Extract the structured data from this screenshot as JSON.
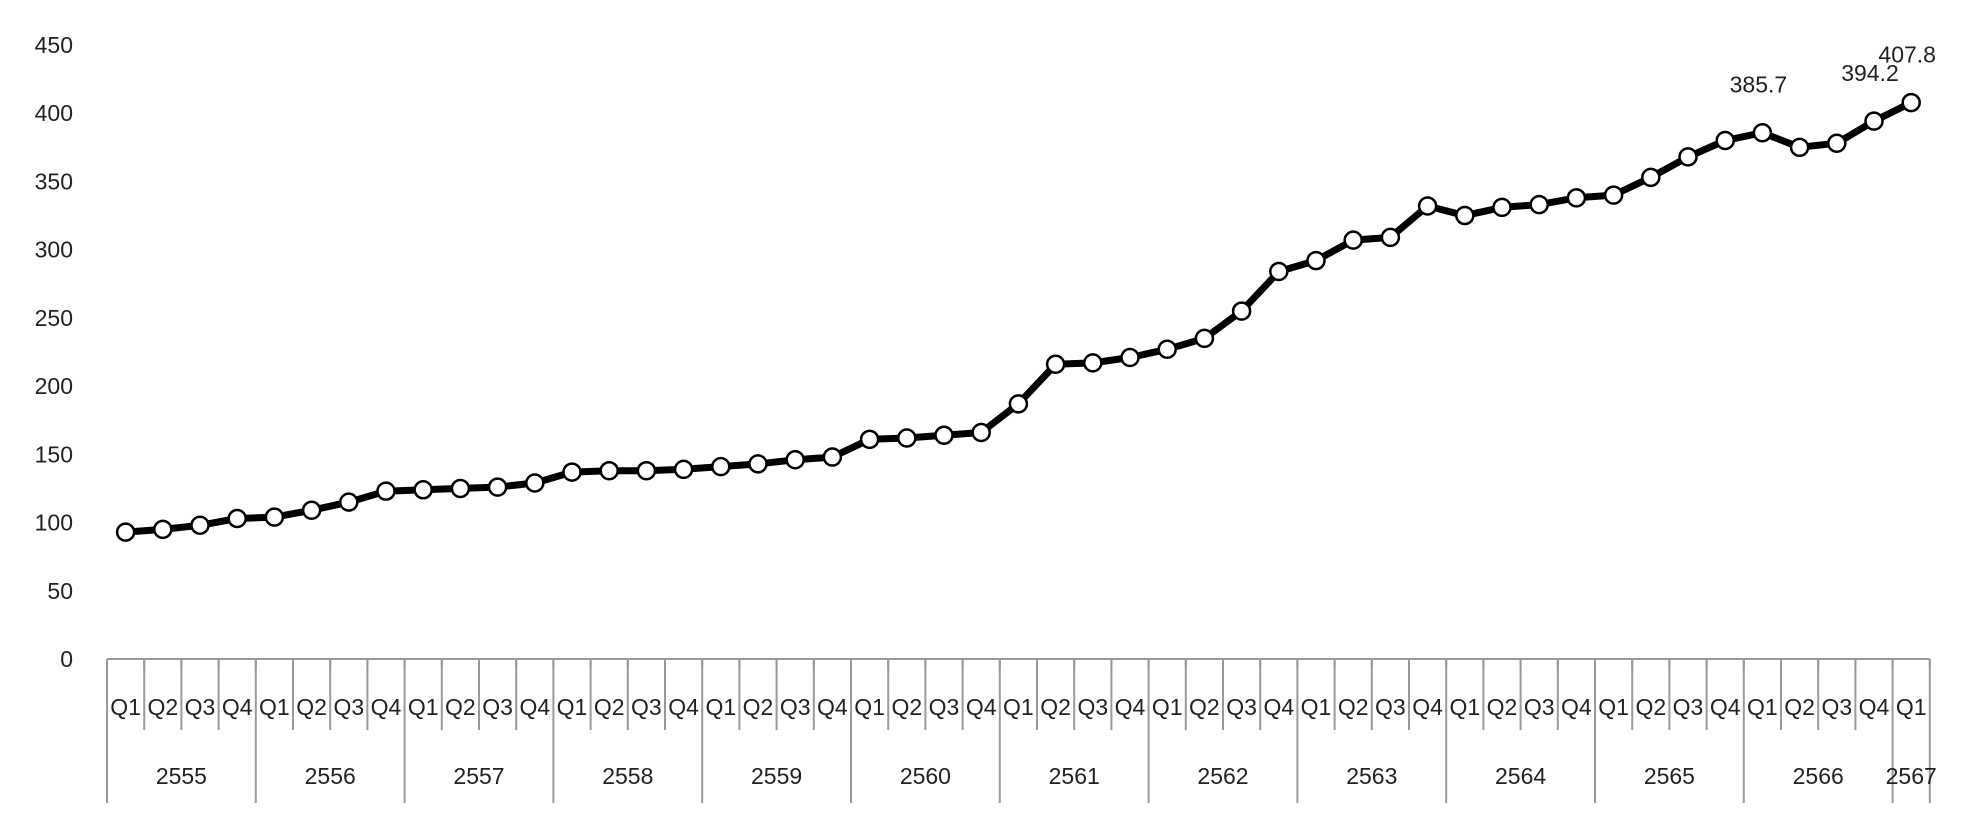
{
  "chart_data": {
    "type": "line",
    "title": "",
    "xlabel": "",
    "ylabel": "",
    "ylim": [
      0,
      450
    ],
    "yticks": [
      0,
      50,
      100,
      150,
      200,
      250,
      300,
      350,
      400,
      450
    ],
    "grid": false,
    "legend": "none",
    "years": [
      "2555",
      "2556",
      "2557",
      "2558",
      "2559",
      "2560",
      "2561",
      "2562",
      "2563",
      "2564",
      "2565",
      "2566",
      "2567"
    ],
    "quarters_per_year": 4,
    "categories": [
      "Q1",
      "Q2",
      "Q3",
      "Q4",
      "Q1",
      "Q2",
      "Q3",
      "Q4",
      "Q1",
      "Q2",
      "Q3",
      "Q4",
      "Q1",
      "Q2",
      "Q3",
      "Q4",
      "Q1",
      "Q2",
      "Q3",
      "Q4",
      "Q1",
      "Q2",
      "Q3",
      "Q4",
      "Q1",
      "Q2",
      "Q3",
      "Q4",
      "Q1",
      "Q2",
      "Q3",
      "Q4",
      "Q1",
      "Q2",
      "Q3",
      "Q4",
      "Q1",
      "Q2",
      "Q3",
      "Q4",
      "Q1",
      "Q2",
      "Q3",
      "Q4",
      "Q1",
      "Q2",
      "Q3",
      "Q4",
      "Q1"
    ],
    "values": [
      93,
      95,
      98,
      103,
      104,
      109,
      115,
      123,
      124,
      125,
      126,
      129,
      137,
      138,
      138,
      139,
      141,
      143,
      146,
      148,
      161,
      162,
      164,
      166,
      187,
      216,
      217,
      221,
      227,
      235,
      255,
      284,
      292,
      307,
      309,
      332,
      325,
      331,
      333,
      338,
      340,
      353,
      368,
      380,
      385.7,
      375,
      378,
      394.2,
      407.8
    ],
    "data_labels": [
      {
        "index": 44,
        "text": "385.7"
      },
      {
        "index": 47,
        "text": "394.2"
      },
      {
        "index": 48,
        "text": "407.8"
      }
    ],
    "colors": {
      "line": "#000000",
      "marker_fill": "#ffffff",
      "axis": "#999999",
      "text": "#222222"
    }
  }
}
